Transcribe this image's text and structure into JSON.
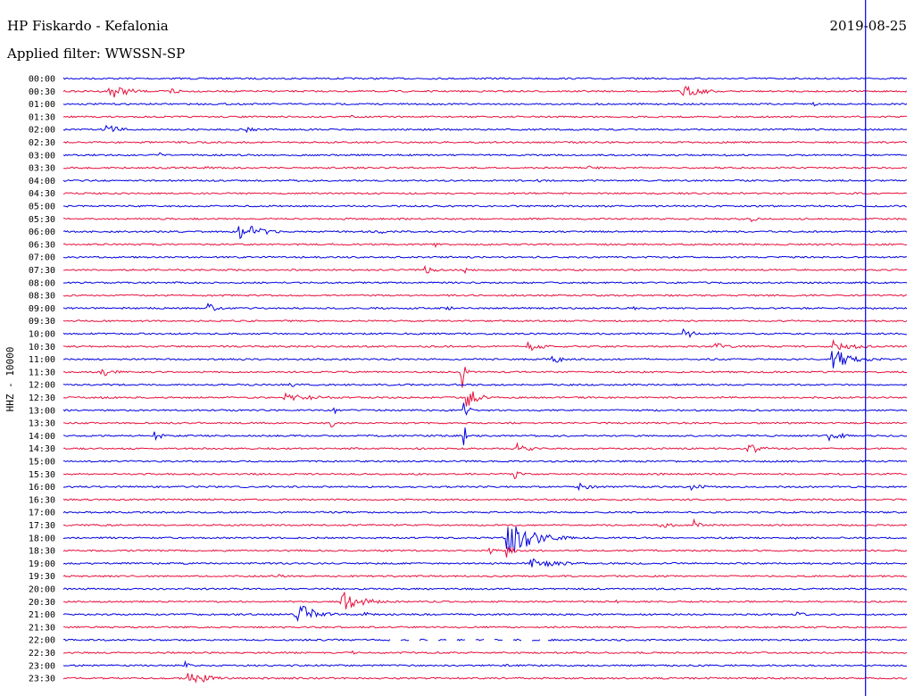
{
  "header": {
    "station": "HP Fiskardo - Kefalonia",
    "filter": "Applied filter: WWSSN-SP",
    "date": "2019-08-25"
  },
  "chart_data": {
    "type": "line",
    "title": "HP Fiskardo - Kefalonia",
    "subtitle": "Applied filter: WWSSN-SP",
    "ylabel": "HHZ - 10000",
    "rows": [
      "00:00",
      "00:30",
      "01:00",
      "01:30",
      "02:00",
      "02:30",
      "03:00",
      "03:30",
      "04:00",
      "04:30",
      "05:00",
      "05:30",
      "06:00",
      "06:30",
      "07:00",
      "07:30",
      "08:00",
      "08:30",
      "09:00",
      "09:30",
      "10:00",
      "10:30",
      "11:00",
      "11:30",
      "12:00",
      "12:30",
      "13:00",
      "13:30",
      "14:00",
      "14:30",
      "15:00",
      "15:30",
      "16:00",
      "16:30",
      "17:00",
      "17:30",
      "18:00",
      "18:30",
      "19:00",
      "19:30",
      "20:00",
      "20:30",
      "21:00",
      "21:30",
      "22:00",
      "22:30",
      "23:00",
      "23:30"
    ],
    "colors": {
      "even": "#0000e0",
      "odd": "#e8103c",
      "text": "#000000"
    },
    "row_minutes": 30,
    "cursor_minute": 28.5,
    "events": [
      {
        "row": 1,
        "t": 1.6,
        "a": 10,
        "d": 1.2
      },
      {
        "row": 1,
        "t": 3.8,
        "a": 6,
        "d": 0.6
      },
      {
        "row": 1,
        "t": 21.9,
        "a": 8,
        "d": 1.5
      },
      {
        "row": 2,
        "t": 26.5,
        "a": 10,
        "d": 0.3
      },
      {
        "row": 3,
        "t": 10.2,
        "a": 5,
        "d": 0.2
      },
      {
        "row": 4,
        "t": 1.5,
        "a": 7,
        "d": 1.0
      },
      {
        "row": 4,
        "t": 6.5,
        "a": 3,
        "d": 1.0
      },
      {
        "row": 6,
        "t": 3.4,
        "a": 3,
        "d": 0.3
      },
      {
        "row": 6,
        "t": 23.8,
        "a": 3,
        "d": 0.2
      },
      {
        "row": 7,
        "t": 5.0,
        "a": 3,
        "d": 0.6
      },
      {
        "row": 7,
        "t": 18.6,
        "a": 3,
        "d": 1.2
      },
      {
        "row": 8,
        "t": 16.8,
        "a": 5,
        "d": 0.3
      },
      {
        "row": 9,
        "t": 21.0,
        "a": 3,
        "d": 0.3
      },
      {
        "row": 11,
        "t": 24.4,
        "a": 7,
        "d": 0.3
      },
      {
        "row": 12,
        "t": 6.2,
        "a": 12,
        "d": 1.5
      },
      {
        "row": 12,
        "t": 11.2,
        "a": 3,
        "d": 0.8
      },
      {
        "row": 13,
        "t": 13.1,
        "a": 9,
        "d": 0.3
      },
      {
        "row": 13,
        "t": 9.5,
        "a": 3,
        "d": 0.3
      },
      {
        "row": 15,
        "t": 12.8,
        "a": 7,
        "d": 0.6
      },
      {
        "row": 15,
        "t": 14.2,
        "a": 6,
        "d": 0.3
      },
      {
        "row": 18,
        "t": 5.1,
        "a": 7,
        "d": 0.6
      },
      {
        "row": 18,
        "t": 13.5,
        "a": 5,
        "d": 0.5
      },
      {
        "row": 18,
        "t": 20.2,
        "a": 5,
        "d": 0.2
      },
      {
        "row": 20,
        "t": 22.0,
        "a": 7,
        "d": 0.8
      },
      {
        "row": 21,
        "t": 16.5,
        "a": 6,
        "d": 1.0
      },
      {
        "row": 21,
        "t": 23.1,
        "a": 5,
        "d": 1.0
      },
      {
        "row": 21,
        "t": 27.3,
        "a": 8,
        "d": 1.5
      },
      {
        "row": 22,
        "t": 17.3,
        "a": 6,
        "d": 0.9
      },
      {
        "row": 22,
        "t": 27.3,
        "a": 12,
        "d": 1.5
      },
      {
        "row": 23,
        "t": 1.3,
        "a": 6,
        "d": 0.9
      },
      {
        "row": 23,
        "t": 14.1,
        "a": 40,
        "d": 0.2
      },
      {
        "row": 24,
        "t": 8.0,
        "a": 4,
        "d": 0.5
      },
      {
        "row": 25,
        "t": 14.3,
        "a": 20,
        "d": 0.6
      },
      {
        "row": 25,
        "t": 7.8,
        "a": 5,
        "d": 2.5
      },
      {
        "row": 25,
        "t": 1.2,
        "a": 4,
        "d": 0.4
      },
      {
        "row": 26,
        "t": 9.6,
        "a": 5,
        "d": 0.3
      },
      {
        "row": 26,
        "t": 14.2,
        "a": 15,
        "d": 0.3
      },
      {
        "row": 27,
        "t": 9.5,
        "a": 6,
        "d": 0.3
      },
      {
        "row": 28,
        "t": 3.2,
        "a": 6,
        "d": 0.6
      },
      {
        "row": 28,
        "t": 14.2,
        "a": 15,
        "d": 0.3
      },
      {
        "row": 28,
        "t": 27.2,
        "a": 6,
        "d": 1.0
      },
      {
        "row": 29,
        "t": 16.0,
        "a": 8,
        "d": 1.0
      },
      {
        "row": 29,
        "t": 24.3,
        "a": 7,
        "d": 1.0
      },
      {
        "row": 31,
        "t": 16.0,
        "a": 12,
        "d": 0.3
      },
      {
        "row": 32,
        "t": 18.3,
        "a": 5,
        "d": 1.0
      },
      {
        "row": 32,
        "t": 22.3,
        "a": 4,
        "d": 1.0
      },
      {
        "row": 35,
        "t": 21.2,
        "a": 4,
        "d": 1.0
      },
      {
        "row": 35,
        "t": 22.4,
        "a": 10,
        "d": 0.3
      },
      {
        "row": 36,
        "t": 15.7,
        "a": 25,
        "d": 1.6
      },
      {
        "row": 36,
        "t": 26.0,
        "a": 4,
        "d": 0.3
      },
      {
        "row": 37,
        "t": 15.1,
        "a": 6,
        "d": 0.5
      },
      {
        "row": 37,
        "t": 15.7,
        "a": 12,
        "d": 0.4
      },
      {
        "row": 38,
        "t": 16.6,
        "a": 6,
        "d": 2.0
      },
      {
        "row": 39,
        "t": 7.5,
        "a": 4,
        "d": 0.6
      },
      {
        "row": 41,
        "t": 9.8,
        "a": 14,
        "d": 1.4
      },
      {
        "row": 41,
        "t": 19.6,
        "a": 4,
        "d": 0.2
      },
      {
        "row": 42,
        "t": 8.2,
        "a": 17,
        "d": 1.2
      },
      {
        "row": 42,
        "t": 10.6,
        "a": 4,
        "d": 0.7
      },
      {
        "row": 42,
        "t": 26.0,
        "a": 3,
        "d": 1.0
      },
      {
        "row": 45,
        "t": 10.2,
        "a": 3,
        "d": 0.4
      },
      {
        "row": 46,
        "t": 4.3,
        "a": 6,
        "d": 0.3
      },
      {
        "row": 46,
        "t": 15.7,
        "a": 3,
        "d": 0.3
      },
      {
        "row": 47,
        "t": 4.4,
        "a": 10,
        "d": 1.3
      }
    ],
    "gaps": [
      {
        "row": 44,
        "t1": 11.3,
        "t2": 17.2
      }
    ]
  }
}
